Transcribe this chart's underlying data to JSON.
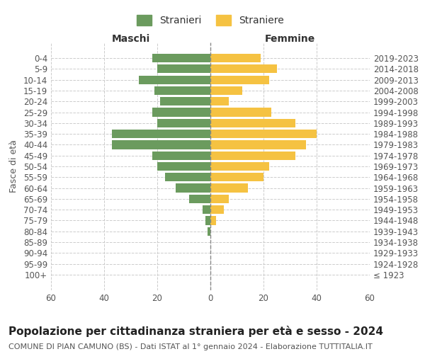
{
  "age_groups": [
    "100+",
    "95-99",
    "90-94",
    "85-89",
    "80-84",
    "75-79",
    "70-74",
    "65-69",
    "60-64",
    "55-59",
    "50-54",
    "45-49",
    "40-44",
    "35-39",
    "30-34",
    "25-29",
    "20-24",
    "15-19",
    "10-14",
    "5-9",
    "0-4"
  ],
  "birth_years": [
    "≤ 1923",
    "1924-1928",
    "1929-1933",
    "1934-1938",
    "1939-1943",
    "1944-1948",
    "1949-1953",
    "1954-1958",
    "1959-1963",
    "1964-1968",
    "1969-1973",
    "1974-1978",
    "1979-1983",
    "1984-1988",
    "1989-1993",
    "1994-1998",
    "1999-2003",
    "2004-2008",
    "2009-2013",
    "2014-2018",
    "2019-2023"
  ],
  "maschi": [
    0,
    0,
    0,
    0,
    1,
    2,
    3,
    8,
    13,
    17,
    20,
    22,
    37,
    37,
    20,
    22,
    19,
    21,
    27,
    20,
    22
  ],
  "femmine": [
    0,
    0,
    0,
    0,
    0,
    2,
    5,
    7,
    14,
    20,
    22,
    32,
    36,
    40,
    32,
    23,
    7,
    12,
    22,
    25,
    19
  ],
  "male_color": "#6b9b5e",
  "female_color": "#f5c242",
  "center_line_color": "#888888",
  "grid_color": "#cccccc",
  "background_color": "#ffffff",
  "title": "Popolazione per cittadinanza straniera per età e sesso - 2024",
  "subtitle": "COMUNE DI PIAN CAMUNO (BS) - Dati ISTAT al 1° gennaio 2024 - Elaborazione TUTTITALIA.IT",
  "xlabel_left": "Maschi",
  "xlabel_right": "Femmine",
  "ylabel_left": "Fasce di età",
  "legend_male": "Stranieri",
  "legend_female": "Straniere",
  "xlim": 60,
  "bar_height": 0.8,
  "title_fontsize": 11,
  "subtitle_fontsize": 8,
  "label_fontsize": 9,
  "tick_fontsize": 8.5,
  "legend_fontsize": 10
}
